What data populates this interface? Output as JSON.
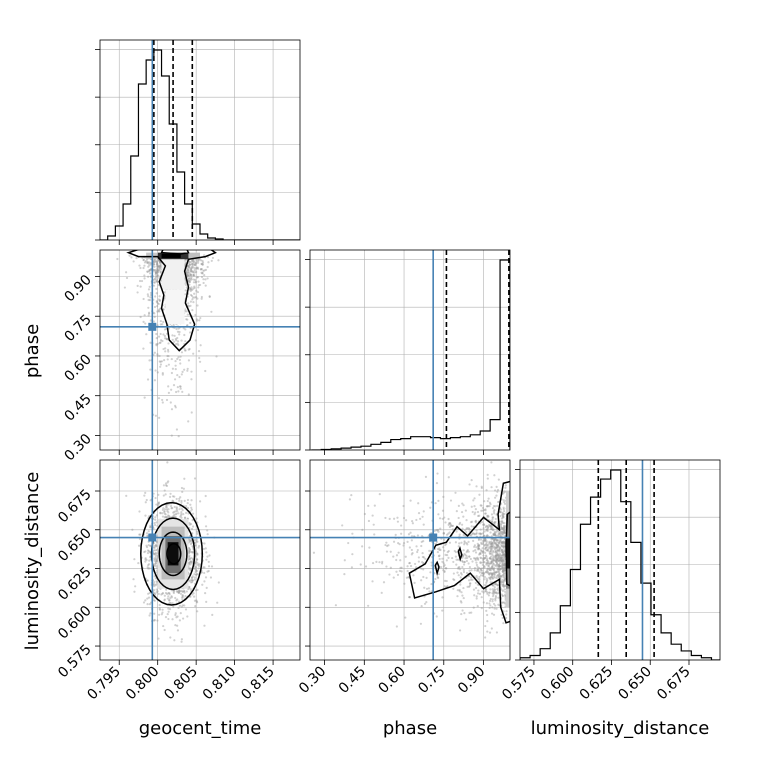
{
  "chart_data": {
    "type": "corner",
    "parameters": [
      "geocent_time",
      "phase",
      "luminosity_distance"
    ],
    "colors": {
      "truth": "#4682b4",
      "hist": "#000000",
      "grid": "#b0b0b0",
      "points": "#9a9a9a"
    },
    "grid": true,
    "truths": {
      "geocent_time": 0.7993,
      "phase": 0.71,
      "luminosity_distance": 0.645
    },
    "axes": {
      "geocent_time": {
        "range": [
          0.7925,
          0.8185
        ],
        "ticks": [
          "0.795",
          "0.800",
          "0.805",
          "0.810",
          "0.815"
        ],
        "tick_values": [
          0.795,
          0.8,
          0.805,
          0.81,
          0.815
        ]
      },
      "phase": {
        "range": [
          0.245,
          1.0
        ],
        "ticks": [
          "0.30",
          "0.45",
          "0.60",
          "0.75",
          "0.90"
        ],
        "tick_values": [
          0.3,
          0.45,
          0.6,
          0.75,
          0.9
        ]
      },
      "luminosity_distance": {
        "range": [
          0.566,
          0.695
        ],
        "ticks": [
          "0.575",
          "0.600",
          "0.625",
          "0.650",
          "0.675"
        ],
        "tick_values": [
          0.575,
          0.6,
          0.625,
          0.65,
          0.675
        ]
      }
    },
    "histograms": {
      "geocent_time": {
        "bin_start": 0.7925,
        "bin_width": 0.001,
        "counts": [
          0,
          2,
          7,
          18,
          42,
          78,
          90,
          95,
          82,
          58,
          34,
          18,
          8,
          3,
          1,
          0.5,
          0,
          0,
          0,
          0,
          0,
          0,
          0,
          0,
          0,
          0
        ],
        "quantiles": [
          0.7995,
          0.802,
          0.8045
        ]
      },
      "phase": {
        "bin_start": 0.25,
        "bin_width": 0.0375,
        "counts": [
          0,
          0.3,
          0.6,
          1,
          1.5,
          2,
          3,
          4,
          5.5,
          6,
          7,
          7,
          6.5,
          6,
          6.5,
          7,
          8,
          10,
          16,
          100
        ],
        "quantiles": [
          0.76,
          0.998,
          1.0
        ]
      },
      "luminosity_distance": {
        "bin_start": 0.566,
        "bin_width": 0.0065,
        "counts": [
          1,
          2,
          5,
          12,
          24,
          40,
          60,
          72,
          80,
          84,
          70,
          52,
          34,
          20,
          12,
          7,
          4,
          2,
          1,
          0
        ],
        "quantiles": [
          0.6165,
          0.6345,
          0.6525
        ]
      }
    },
    "scatter_pairs": [
      {
        "x": "geocent_time",
        "y": "phase"
      },
      {
        "x": "geocent_time",
        "y": "luminosity_distance"
      },
      {
        "x": "phase",
        "y": "luminosity_distance"
      }
    ]
  }
}
